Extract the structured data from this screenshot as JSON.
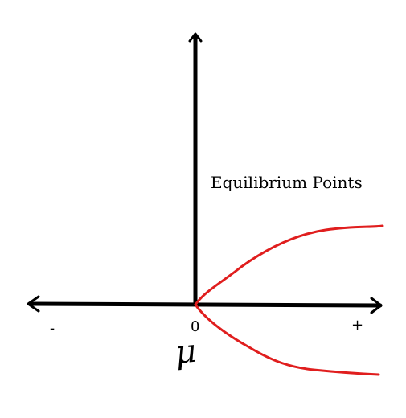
{
  "diagram": {
    "title": "Equilibrium Points",
    "x_axis": {
      "negative_label": "-",
      "origin_label": "0",
      "positive_label": "+",
      "parameter_symbol": "μ"
    },
    "colors": {
      "axes": "#000000",
      "curves": "#e01e1e",
      "background": "#ffffff"
    }
  }
}
